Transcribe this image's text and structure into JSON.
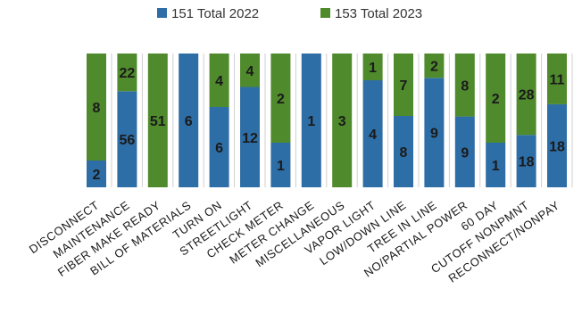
{
  "chart_data": {
    "type": "bar",
    "stacked": true,
    "normalized": true,
    "legend_position": "top",
    "grid": false,
    "categories": [
      "DISCONNECT",
      "MAINTENANCE",
      "FIBER MAKE READY",
      "BILL OF MATERIALS",
      "TURN ON",
      "STREETLIGHT",
      "CHECK METER",
      "METER CHANGE",
      "MISCELLANEOUS",
      "VAPOR LIGHT",
      "LOW/DOWN LINE",
      "TREE IN LINE",
      "NO/PARTIAL POWER",
      "60 DAY",
      "CUTOFF NONPMNT",
      "RECONNECT/NONPAY"
    ],
    "series": [
      {
        "name": "151 Total 2022",
        "color": "#2e6ea6",
        "values": [
          2,
          56,
          0,
          6,
          6,
          12,
          1,
          1,
          0,
          4,
          8,
          9,
          9,
          1,
          18,
          18
        ]
      },
      {
        "name": "153 Total 2023",
        "color": "#4f8a2c",
        "values": [
          8,
          22,
          51,
          0,
          4,
          4,
          2,
          0,
          3,
          1,
          7,
          2,
          8,
          2,
          28,
          11
        ]
      }
    ],
    "data_labels": {
      "series_0": [
        "2",
        "56",
        "",
        "6",
        "6",
        "12",
        "1",
        "1",
        "",
        "4",
        "8",
        "9",
        "9",
        "1",
        "18",
        "18"
      ],
      "series_1": [
        "8",
        "22",
        "51",
        "",
        "4",
        "4",
        "2",
        "",
        "3",
        "1",
        "7",
        "2",
        "8",
        "2",
        "28",
        "11"
      ]
    }
  }
}
